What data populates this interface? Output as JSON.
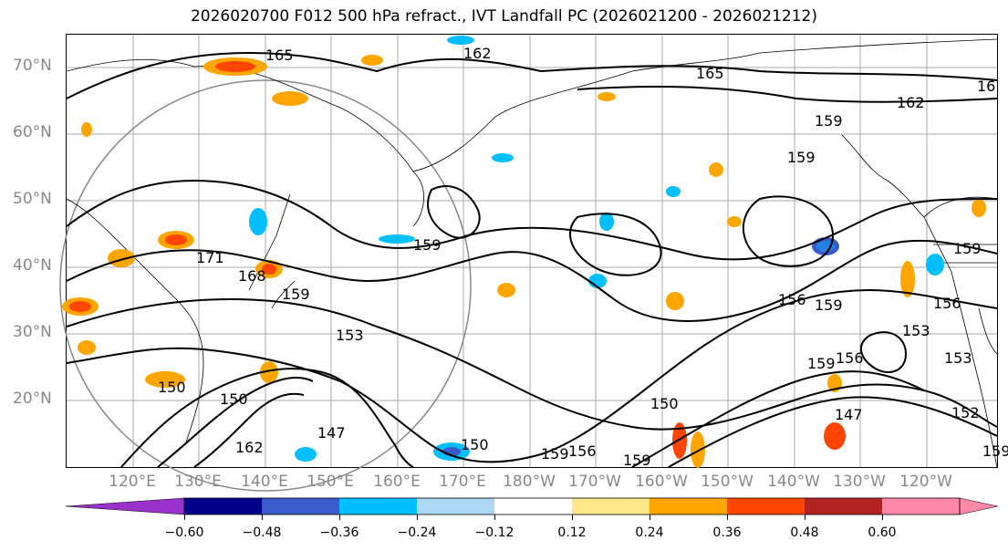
{
  "title": "2026020700 F012 500 hPa refract., IVT Landfall PC (2026021200 - 2026021212)",
  "lat_labels": [
    "70°N",
    "60°N",
    "50°N",
    "40°N",
    "30°N",
    "20°N"
  ],
  "lon_labels": [
    "120°E",
    "130°E",
    "140°E",
    "150°E",
    "160°E",
    "170°E",
    "180°W",
    "170°W",
    "160°W",
    "150°W",
    "140°W",
    "130°W",
    "120°W"
  ],
  "contour_labels": [
    "165",
    "162",
    "165",
    "162",
    "16",
    "159",
    "159",
    "171",
    "168",
    "159",
    "159",
    "156",
    "159",
    "153",
    "150",
    "150",
    "147",
    "162",
    "150",
    "159",
    "156",
    "159",
    "159",
    "156",
    "150",
    "147",
    "153",
    "159",
    "156",
    "153",
    "152",
    "159"
  ],
  "colorbar": {
    "ticks": [
      "−0.60",
      "−0.48",
      "−0.36",
      "−0.24",
      "−0.12",
      "0.12",
      "0.24",
      "0.36",
      "0.48",
      "0.60"
    ],
    "colors": [
      "#9932cc",
      "#00008b",
      "#3a5bcc",
      "#00bfff",
      "#add8f5",
      "#ffffff",
      "#ffe88a",
      "#ffa500",
      "#ff4500",
      "#b22222",
      "#ff88aa",
      "#ff88aa"
    ],
    "under_color": "#9932cc",
    "over_color": "#ff88aa"
  }
}
